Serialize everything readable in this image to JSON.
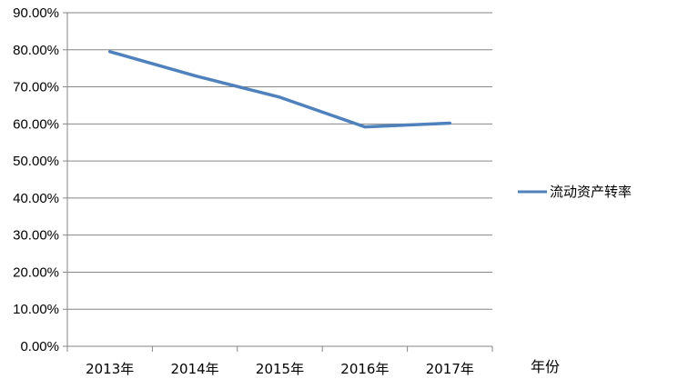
{
  "chart_data": {
    "type": "line",
    "categories": [
      "2013年",
      "2014年",
      "2015年",
      "2016年",
      "2017年"
    ],
    "series": [
      {
        "name": "流动资产转率",
        "values": [
          79.5,
          73.0,
          67.2,
          59.2,
          60.2
        ]
      }
    ],
    "ylim": [
      0,
      90
    ],
    "yticks": [
      "0.00%",
      "10.00%",
      "20.00%",
      "30.00%",
      "40.00%",
      "50.00%",
      "60.00%",
      "70.00%",
      "80.00%",
      "90.00%"
    ],
    "xlabel": "年份",
    "ylabel": "",
    "title": "",
    "grid": true,
    "legend_position": "right",
    "colors": {
      "series": "#4f81bd",
      "grid": "#868686",
      "axis": "#868686"
    }
  }
}
